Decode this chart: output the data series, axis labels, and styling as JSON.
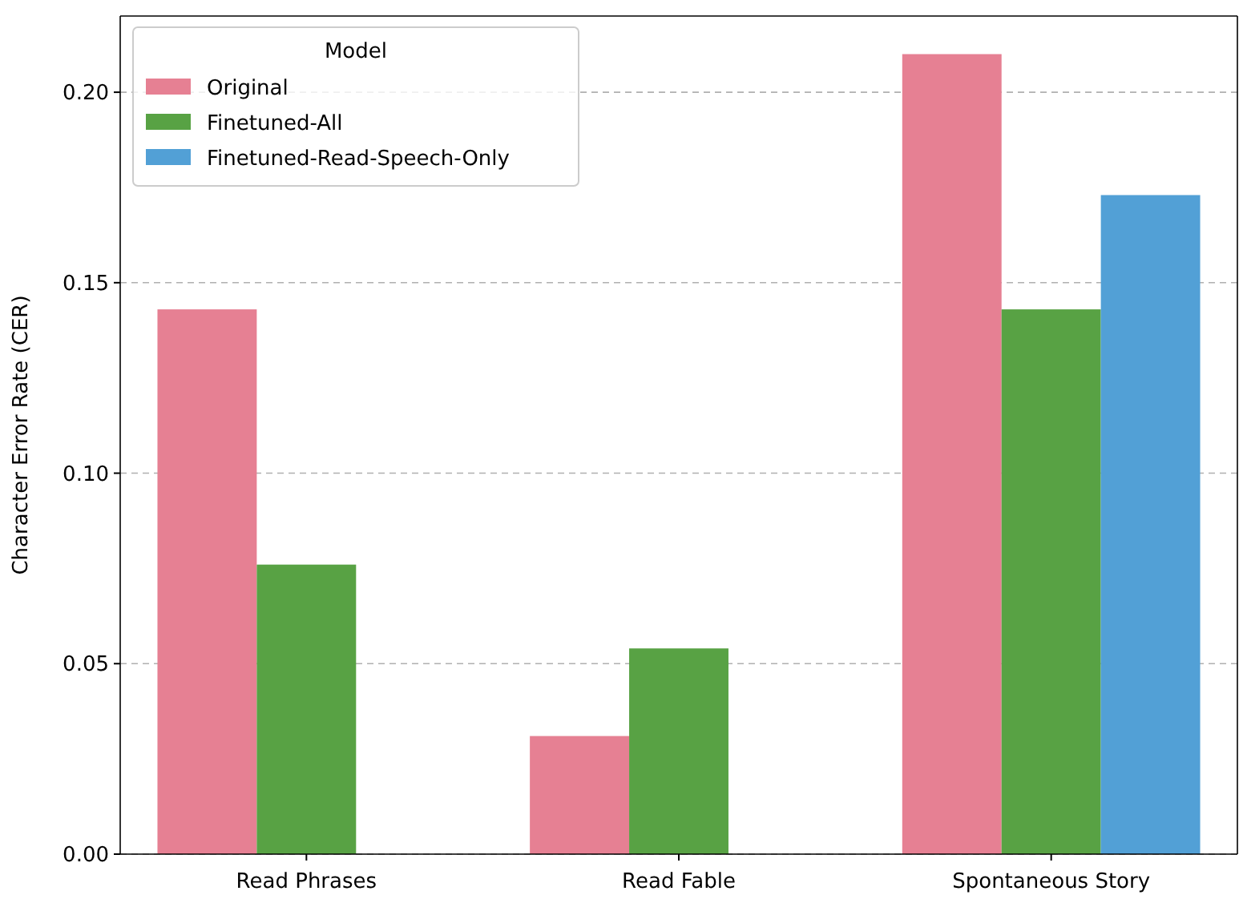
{
  "chart_data": {
    "type": "bar",
    "ylabel": "Character Error Rate (CER)",
    "legend_title": "Model",
    "categories": [
      "Read Phrases",
      "Read Fable",
      "Spontaneous Story"
    ],
    "series": [
      {
        "name": "Original",
        "color": "#e68093",
        "values": [
          0.143,
          0.031,
          0.21
        ]
      },
      {
        "name": "Finetuned-All",
        "color": "#58a244",
        "values": [
          0.076,
          0.054,
          0.143
        ]
      },
      {
        "name": "Finetuned-Read-Speech-Only",
        "color": "#52a0d6",
        "values": [
          null,
          null,
          0.173
        ]
      }
    ],
    "ylim": [
      0,
      0.22
    ],
    "yticks": [
      {
        "value": 0,
        "label": "0.00"
      },
      {
        "value": 0.05,
        "label": "0.05"
      },
      {
        "value": 0.1,
        "label": "0.10"
      },
      {
        "value": 0.15,
        "label": "0.15"
      },
      {
        "value": 0.2,
        "label": "0.20"
      }
    ],
    "grid": "y",
    "legend": "top left"
  }
}
